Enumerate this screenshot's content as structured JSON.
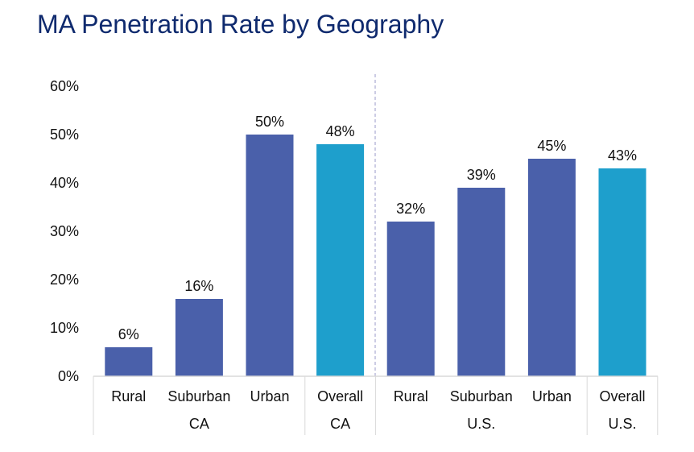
{
  "chart_data": {
    "type": "bar",
    "title": "MA Penetration Rate by Geography",
    "xlabel": "",
    "ylabel": "",
    "ylim": [
      0,
      60
    ],
    "yticks": [
      "0%",
      "10%",
      "20%",
      "30%",
      "40%",
      "50%",
      "60%"
    ],
    "grid": false,
    "categories": [
      "Rural",
      "Suburban",
      "Urban",
      "Overall",
      "Rural",
      "Suburban",
      "Urban",
      "Overall"
    ],
    "groups": [
      {
        "label": "CA",
        "span": [
          0,
          2
        ]
      },
      {
        "label": "CA",
        "span": [
          3,
          3
        ]
      },
      {
        "label": "U.S.",
        "span": [
          4,
          6
        ]
      },
      {
        "label": "U.S.",
        "span": [
          7,
          7
        ]
      }
    ],
    "values": [
      6,
      16,
      50,
      48,
      32,
      39,
      45,
      43
    ],
    "data_labels": [
      "6%",
      "16%",
      "50%",
      "48%",
      "32%",
      "39%",
      "45%",
      "43%"
    ],
    "bar_colors": [
      "#4a60aa",
      "#4a60aa",
      "#4a60aa",
      "#1e9fcc",
      "#4a60aa",
      "#4a60aa",
      "#4a60aa",
      "#1e9fcc"
    ],
    "divider": "dashed line between CA and U.S."
  }
}
